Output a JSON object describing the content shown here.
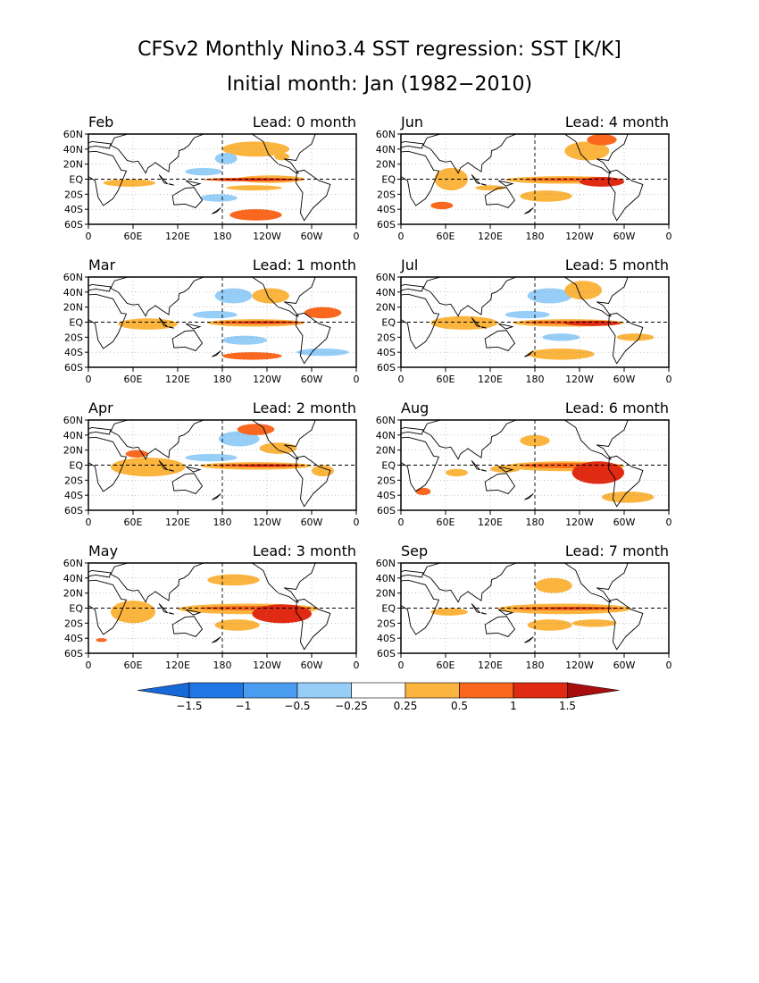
{
  "title_line1": "CFSv2 Monthly Nino3.4 SST regression: SST [K/K]",
  "title_line2": "Initial month: Jan (1982−2010)",
  "lat_ticks": [
    "60N",
    "40N",
    "20N",
    "EQ",
    "20S",
    "40S",
    "60S"
  ],
  "lon_ticks_a": [
    "0",
    "60E",
    "120E",
    "180",
    "120W",
    "60W",
    "0"
  ],
  "lon_ticks_b": [
    "0",
    "60E",
    "120E",
    "180",
    "120W",
    "60W",
    "0"
  ],
  "panels": [
    {
      "month": "Feb",
      "lead": "Lead: 0 month"
    },
    {
      "month": "Jun",
      "lead": "Lead: 4 month"
    },
    {
      "month": "Mar",
      "lead": "Lead: 1 month"
    },
    {
      "month": "Jul",
      "lead": "Lead: 5 month"
    },
    {
      "month": "Apr",
      "lead": "Lead: 2 month"
    },
    {
      "month": "Aug",
      "lead": "Lead: 6 month"
    },
    {
      "month": "May",
      "lead": "Lead: 3 month"
    },
    {
      "month": "Sep",
      "lead": "Lead: 7 month"
    }
  ],
  "colorbar": {
    "labels": [
      "−1.5",
      "−1",
      "−0.5",
      "−0.25",
      "0.25",
      "0.5",
      "1",
      "1.5"
    ],
    "colors": [
      "#2176e6",
      "#4a9cf0",
      "#96cef8",
      "#ffffff",
      "#fbb53f",
      "#f9681e",
      "#e02a12",
      "#a80d0d"
    ],
    "low_extend_color": "#1869d8",
    "high_extend_color": "#a80d0d"
  }
}
